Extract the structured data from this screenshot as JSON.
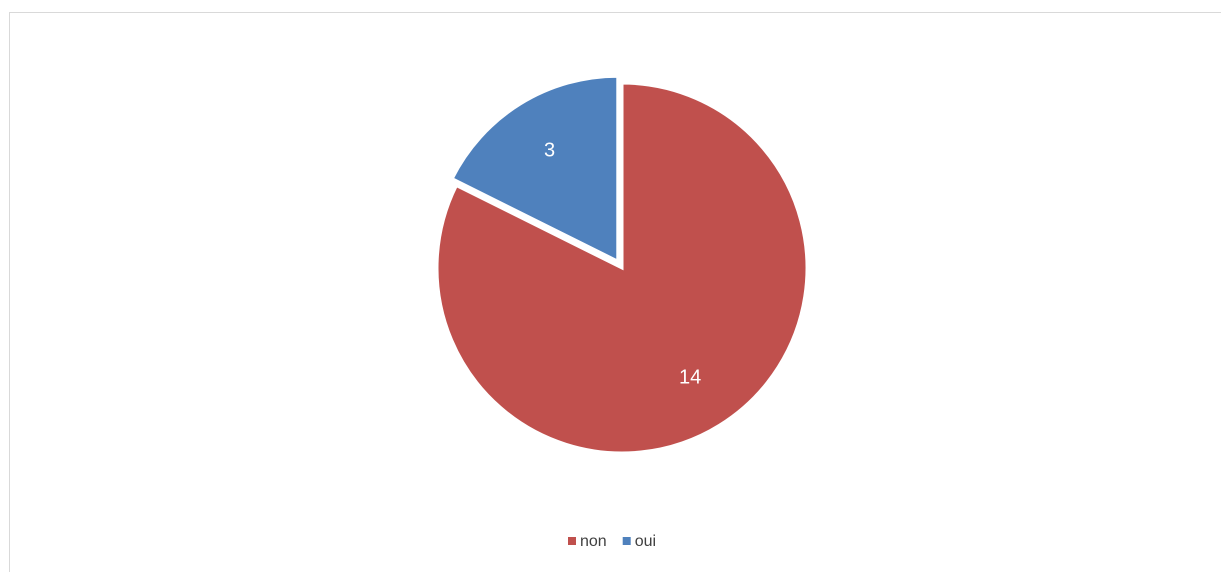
{
  "chart_data": {
    "type": "pie",
    "categories": [
      "non",
      "oui"
    ],
    "values": [
      14,
      3
    ],
    "colors": [
      "#c0504d",
      "#4f81bd"
    ],
    "legend": "bottom"
  }
}
